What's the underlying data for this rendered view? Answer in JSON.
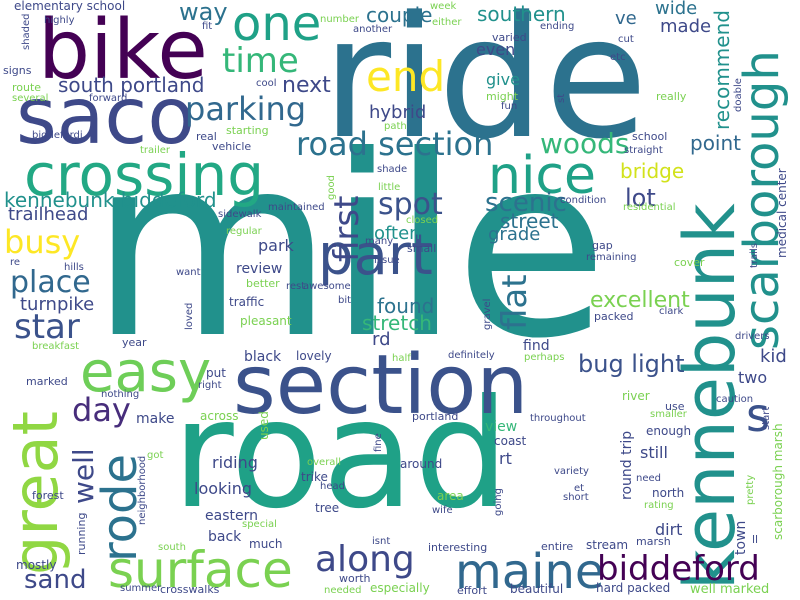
{
  "words": [
    {
      "text": "mile",
      "color": "#21918c"
    },
    {
      "text": "road",
      "color": "#1fa187"
    },
    {
      "text": "ride",
      "color": "#2c728e"
    },
    {
      "text": "section",
      "color": "#3b528b"
    },
    {
      "text": "bike",
      "color": "#440154"
    },
    {
      "text": "saco",
      "color": "#3e4989"
    },
    {
      "text": "kennebunk",
      "color": "#21918c"
    },
    {
      "text": "crossing",
      "color": "#22a884"
    },
    {
      "text": "great",
      "color": "#90d743"
    },
    {
      "text": "maine",
      "color": "#31688e"
    },
    {
      "text": "surface",
      "color": "#7ad151"
    },
    {
      "text": "part",
      "color": "#3b528b"
    },
    {
      "text": "scarborough",
      "color": "#21918c"
    },
    {
      "text": "rode",
      "color": "#2c728e"
    },
    {
      "text": "nice",
      "color": "#1fa187"
    },
    {
      "text": "easy",
      "color": "#6ece58"
    },
    {
      "text": "biddeford",
      "color": "#440154"
    },
    {
      "text": "one",
      "color": "#1fa187"
    },
    {
      "text": "end",
      "color": "#fde725"
    },
    {
      "text": "along",
      "color": "#3e4989"
    },
    {
      "text": "road section",
      "color": "#2c728e"
    },
    {
      "text": "busy",
      "color": "#fde725"
    },
    {
      "text": "star",
      "color": "#3b528b"
    },
    {
      "text": "place",
      "color": "#31688e"
    },
    {
      "text": "kennebunk biddeford",
      "color": "#21918c"
    },
    {
      "text": "parking",
      "color": "#31688e"
    },
    {
      "text": "time",
      "color": "#35b779"
    },
    {
      "text": "south portland",
      "color": "#3e4989"
    },
    {
      "text": "woods",
      "color": "#35b779"
    },
    {
      "text": "spot",
      "color": "#3b528b"
    },
    {
      "text": "first",
      "color": "#3e4989"
    },
    {
      "text": "flat",
      "color": "#2c728e"
    },
    {
      "text": "day",
      "color": "#472d7b"
    },
    {
      "text": "well",
      "color": "#3e4989"
    },
    {
      "text": "sand",
      "color": "#3e4989"
    },
    {
      "text": "bug light",
      "color": "#3b528b"
    },
    {
      "text": "s",
      "color": "#3b528b"
    },
    {
      "text": "excellent",
      "color": "#7ad151"
    },
    {
      "text": "southern",
      "color": "#21918c"
    },
    {
      "text": "couple",
      "color": "#2c728e"
    },
    {
      "text": "way",
      "color": "#2c728e"
    },
    {
      "text": "recommend",
      "color": "#21918c"
    },
    {
      "text": "next",
      "color": "#3e4989"
    },
    {
      "text": "scenic",
      "color": "#2c728e"
    },
    {
      "text": "street",
      "color": "#2c728e"
    },
    {
      "text": "lot",
      "color": "#3e4989"
    },
    {
      "text": "point",
      "color": "#31688e"
    },
    {
      "text": "bridge",
      "color": "#d2e21b"
    },
    {
      "text": "hybrid",
      "color": "#3e4989"
    },
    {
      "text": "found",
      "color": "#2c728e"
    },
    {
      "text": "stretch",
      "color": "#35b779"
    },
    {
      "text": "often",
      "color": "#21918c"
    },
    {
      "text": "grade",
      "color": "#2c728e"
    },
    {
      "text": "turnpike",
      "color": "#3e4989"
    },
    {
      "text": "trailhead",
      "color": "#3e4989"
    },
    {
      "text": "wide",
      "color": "#2c728e"
    },
    {
      "text": "made",
      "color": "#3e4989"
    },
    {
      "text": "even",
      "color": "#3e4989"
    },
    {
      "text": "give",
      "color": "#21918c"
    },
    {
      "text": "ve",
      "color": "#31688e"
    },
    {
      "text": "review",
      "color": "#3e4989"
    },
    {
      "text": "park",
      "color": "#3e4989"
    },
    {
      "text": "rd",
      "color": "#3e4989"
    },
    {
      "text": "find",
      "color": "#3e4989"
    },
    {
      "text": "kid",
      "color": "#3e4989"
    },
    {
      "text": "two",
      "color": "#3e4989"
    },
    {
      "text": "black",
      "color": "#3e4989"
    },
    {
      "text": "riding",
      "color": "#3e4989"
    },
    {
      "text": "looking",
      "color": "#3e4989"
    },
    {
      "text": "eastern",
      "color": "#3e4989"
    },
    {
      "text": "back",
      "color": "#3e4989"
    },
    {
      "text": "make",
      "color": "#3e4989"
    },
    {
      "text": "view",
      "color": "#35b779"
    },
    {
      "text": "rt",
      "color": "#3e4989"
    },
    {
      "text": "still",
      "color": "#3e4989"
    },
    {
      "text": "round trip",
      "color": "#3e4989"
    },
    {
      "text": "town",
      "color": "#3e4989"
    },
    {
      "text": "dirt",
      "color": "#3e4989"
    },
    {
      "text": "medical center",
      "color": "#3e4989"
    },
    {
      "text": "scarborough marsh",
      "color": "#7ad151"
    },
    {
      "text": "well marked",
      "color": "#7ad151"
    },
    {
      "text": "hard packed",
      "color": "#3e4989"
    },
    {
      "text": "elementary school",
      "color": "#3e4989"
    },
    {
      "text": "used",
      "color": "#7ad151"
    },
    {
      "text": "lovely",
      "color": "#3e4989"
    },
    {
      "text": "much",
      "color": "#3e4989"
    },
    {
      "text": "put",
      "color": "#3e4989"
    },
    {
      "text": "across",
      "color": "#7ad151"
    },
    {
      "text": "around",
      "color": "#3e4989"
    },
    {
      "text": "portland",
      "color": "#3e4989"
    },
    {
      "text": "coast",
      "color": "#3e4989"
    },
    {
      "text": "enough",
      "color": "#3e4989"
    },
    {
      "text": "north",
      "color": "#3e4989"
    },
    {
      "text": "use",
      "color": "#3e4989"
    },
    {
      "text": "river",
      "color": "#7ad151"
    },
    {
      "text": "area",
      "color": "#7ad151"
    },
    {
      "text": "tree",
      "color": "#3e4989"
    },
    {
      "text": "trike",
      "color": "#3e4989"
    },
    {
      "text": "interesting",
      "color": "#3e4989"
    },
    {
      "text": "especially",
      "color": "#7ad151"
    },
    {
      "text": "worth",
      "color": "#3e4989"
    },
    {
      "text": "beautiful",
      "color": "#3e4989"
    },
    {
      "text": "stream",
      "color": "#3e4989"
    },
    {
      "text": "marsh",
      "color": "#3e4989"
    },
    {
      "text": "entire",
      "color": "#3e4989"
    },
    {
      "text": "crosswalks",
      "color": "#3e4989"
    },
    {
      "text": "effort",
      "color": "#3e4989"
    },
    {
      "text": "running",
      "color": "#3e4989"
    },
    {
      "text": "mostly",
      "color": "#3e4989"
    },
    {
      "text": "forest",
      "color": "#3e4989"
    },
    {
      "text": "marked",
      "color": "#3e4989"
    },
    {
      "text": "year",
      "color": "#3e4989"
    },
    {
      "text": "neighborhood",
      "color": "#3e4989"
    },
    {
      "text": "pleasant",
      "color": "#7ad151"
    },
    {
      "text": "traffic",
      "color": "#3e4989"
    },
    {
      "text": "better",
      "color": "#7ad151"
    },
    {
      "text": "sidewalk",
      "color": "#3e4989"
    },
    {
      "text": "vehicle",
      "color": "#3e4989"
    },
    {
      "text": "real",
      "color": "#3e4989"
    },
    {
      "text": "starting",
      "color": "#7ad151"
    },
    {
      "text": "biddefordi",
      "color": "#3e4989"
    },
    {
      "text": "trailer",
      "color": "#7ad151"
    },
    {
      "text": "signs",
      "color": "#3e4989"
    },
    {
      "text": "route",
      "color": "#7ad151"
    },
    {
      "text": "several",
      "color": "#7ad151"
    },
    {
      "text": "forward",
      "color": "#3e4989"
    },
    {
      "text": "cool",
      "color": "#3e4989"
    },
    {
      "text": "highly",
      "color": "#3e4989"
    },
    {
      "text": "fit",
      "color": "#3e4989"
    },
    {
      "text": "shaded",
      "color": "#3e4989"
    },
    {
      "text": "number",
      "color": "#7ad151"
    },
    {
      "text": "another",
      "color": "#3e4989"
    },
    {
      "text": "week",
      "color": "#7ad151"
    },
    {
      "text": "either",
      "color": "#7ad151"
    },
    {
      "text": "ending",
      "color": "#3e4989"
    },
    {
      "text": "cut",
      "color": "#3e4989"
    },
    {
      "text": "etc",
      "color": "#3e4989"
    },
    {
      "text": "varied",
      "color": "#3e4989"
    },
    {
      "text": "might",
      "color": "#7ad151"
    },
    {
      "text": "fun",
      "color": "#3e4989"
    },
    {
      "text": "st",
      "color": "#3e4989"
    },
    {
      "text": "really",
      "color": "#7ad151"
    },
    {
      "text": "path",
      "color": "#7ad151"
    },
    {
      "text": "school",
      "color": "#3e4989"
    },
    {
      "text": "straight",
      "color": "#3e4989"
    },
    {
      "text": "doable",
      "color": "#3e4989"
    },
    {
      "text": "shade",
      "color": "#3e4989"
    },
    {
      "text": "little",
      "color": "#7ad151"
    },
    {
      "text": "good",
      "color": "#7ad151"
    },
    {
      "text": "maintained",
      "color": "#3e4989"
    },
    {
      "text": "closed",
      "color": "#7ad151"
    },
    {
      "text": "condition",
      "color": "#3e4989"
    },
    {
      "text": "residential",
      "color": "#7ad151"
    },
    {
      "text": "regular",
      "color": "#7ad151"
    },
    {
      "text": "many",
      "color": "#3e4989"
    },
    {
      "text": "small",
      "color": "#3e4989"
    },
    {
      "text": "issue",
      "color": "#3e4989"
    },
    {
      "text": "remaining",
      "color": "#3e4989"
    },
    {
      "text": "gap",
      "color": "#3e4989"
    },
    {
      "text": "cover",
      "color": "#7ad151"
    },
    {
      "text": "trails",
      "color": "#3e4989"
    },
    {
      "text": "re",
      "color": "#3e4989"
    },
    {
      "text": "hills",
      "color": "#3e4989"
    },
    {
      "text": "want",
      "color": "#3e4989"
    },
    {
      "text": "rest",
      "color": "#3e4989"
    },
    {
      "text": "awesome",
      "color": "#3e4989"
    },
    {
      "text": "bit",
      "color": "#3e4989"
    },
    {
      "text": "gravel",
      "color": "#3e4989"
    },
    {
      "text": "packed",
      "color": "#3e4989"
    },
    {
      "text": "clark",
      "color": "#3e4989"
    },
    {
      "text": "drivers",
      "color": "#3e4989"
    },
    {
      "text": "loved",
      "color": "#3e4989"
    },
    {
      "text": "breakfast",
      "color": "#7ad151"
    },
    {
      "text": "half",
      "color": "#7ad151"
    },
    {
      "text": "definitely",
      "color": "#3e4989"
    },
    {
      "text": "perhaps",
      "color": "#7ad151"
    },
    {
      "text": "nothing",
      "color": "#3e4989"
    },
    {
      "text": "right",
      "color": "#3e4989"
    },
    {
      "text": "throughout",
      "color": "#3e4989"
    },
    {
      "text": "smaller",
      "color": "#7ad151"
    },
    {
      "text": "caution",
      "color": "#3e4989"
    },
    {
      "text": "start",
      "color": "#3e4989"
    },
    {
      "text": "got",
      "color": "#7ad151"
    },
    {
      "text": "fine",
      "color": "#3e4989"
    },
    {
      "text": "overall",
      "color": "#7ad151"
    },
    {
      "text": "head",
      "color": "#3e4989"
    },
    {
      "text": "variety",
      "color": "#3e4989"
    },
    {
      "text": "et",
      "color": "#3e4989"
    },
    {
      "text": "short",
      "color": "#3e4989"
    },
    {
      "text": "need",
      "color": "#3e4989"
    },
    {
      "text": "rating",
      "color": "#7ad151"
    },
    {
      "text": "pretty",
      "color": "#7ad151"
    },
    {
      "text": "wife",
      "color": "#3e4989"
    },
    {
      "text": "going",
      "color": "#3e4989"
    },
    {
      "text": "isnt",
      "color": "#3e4989"
    },
    {
      "text": "special",
      "color": "#7ad151"
    },
    {
      "text": "south",
      "color": "#7ad151"
    },
    {
      "text": "summer",
      "color": "#3e4989"
    },
    {
      "text": "needed",
      "color": "#7ad151"
    },
    {
      "text": "ll",
      "color": "#3e4989"
    }
  ]
}
